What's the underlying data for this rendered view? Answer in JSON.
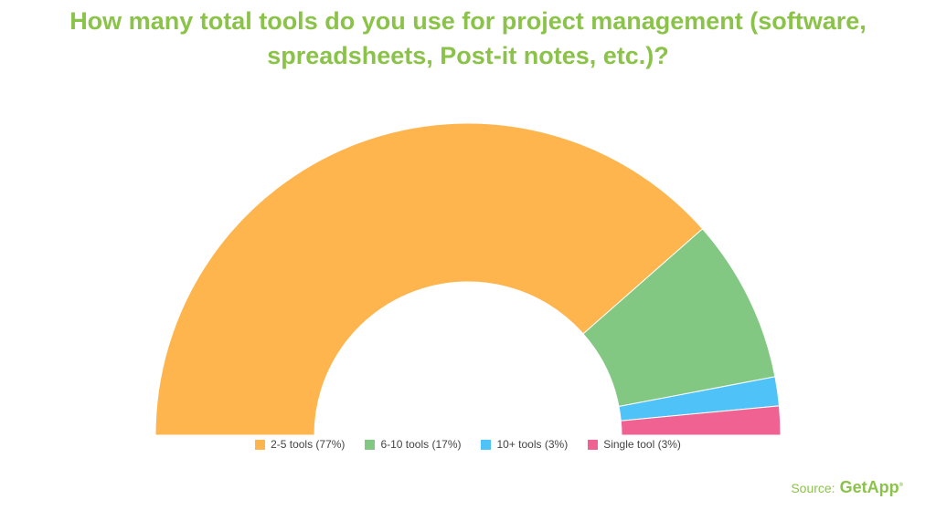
{
  "title": {
    "line1": "How many total tools do you use for project management (software,",
    "line2": "spreadsheets, Post-it notes, etc.)?"
  },
  "chart_data": {
    "type": "pie",
    "variant": "semi-donut",
    "categories": [
      "2-5 tools",
      "6-10 tools",
      "10+ tools",
      "Single tool"
    ],
    "values": [
      77,
      17,
      3,
      3
    ],
    "colors": [
      "#ffb54d",
      "#83c882",
      "#4fc3f7",
      "#f06292"
    ],
    "legend_labels": [
      "2-5 tools (77%)",
      "6-10 tools (17%)",
      "10+ tools (3%)",
      "Single tool (3%)"
    ],
    "legend_position": "bottom"
  },
  "source": {
    "label": "Source:",
    "brand": "GetApp",
    "brand_mark": "®"
  }
}
